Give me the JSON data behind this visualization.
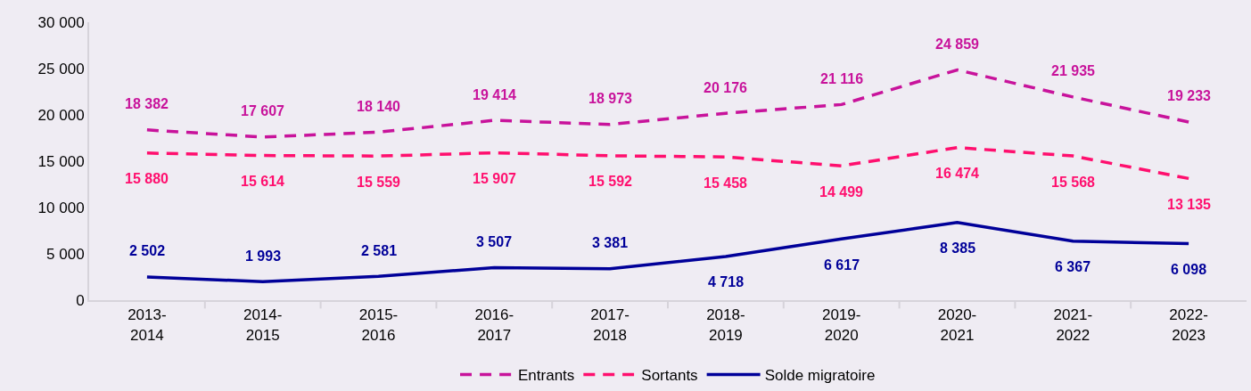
{
  "chart_data": {
    "type": "line",
    "categories": [
      "2013-\n2014",
      "2014-\n2015",
      "2015-\n2016",
      "2016-\n2017",
      "2017-\n2018",
      "2018-\n2019",
      "2019-\n2020",
      "2020-\n2021",
      "2021-\n2022",
      "2022-\n2023"
    ],
    "series": [
      {
        "name": "Entrants",
        "color": "#c8139b",
        "line_style": "dashed",
        "values": [
          18382,
          17607,
          18140,
          19414,
          18973,
          20176,
          21116,
          24859,
          21935,
          19233
        ],
        "value_labels": [
          "18 382",
          "17 607",
          "18 140",
          "19 414",
          "18 973",
          "20 176",
          "21 116",
          "24 859",
          "21 935",
          "19 233"
        ]
      },
      {
        "name": "Sortants",
        "color": "#ff0f6e",
        "line_style": "dashed",
        "values": [
          15880,
          15614,
          15559,
          15907,
          15592,
          15458,
          14499,
          16474,
          15568,
          13135
        ],
        "value_labels": [
          "15 880",
          "15 614",
          "15 559",
          "15 907",
          "15 592",
          "15 458",
          "14 499",
          "16 474",
          "15 568",
          "13 135"
        ]
      },
      {
        "name": "Solde migratoire",
        "color": "#000099",
        "line_style": "solid",
        "values": [
          2502,
          1993,
          2581,
          3507,
          3381,
          4718,
          6617,
          8385,
          6367,
          6098
        ],
        "value_labels": [
          "2 502",
          "1 993",
          "2 581",
          "3 507",
          "3 381",
          "4 718",
          "6 617",
          "8 385",
          "6 367",
          "6 098"
        ]
      }
    ],
    "ylim": [
      0,
      30000
    ],
    "yticks": [
      0,
      {
        "value": 5000,
        "label": "5 000"
      },
      {
        "value": 10000,
        "label": "10 000"
      },
      {
        "value": 15000,
        "label": "15 000"
      },
      {
        "value": 20000,
        "label": "20 000"
      },
      {
        "value": 25000,
        "label": "25 000"
      },
      {
        "value": 30000,
        "label": "30 000"
      }
    ],
    "legend": "bottom",
    "marker": "none"
  }
}
